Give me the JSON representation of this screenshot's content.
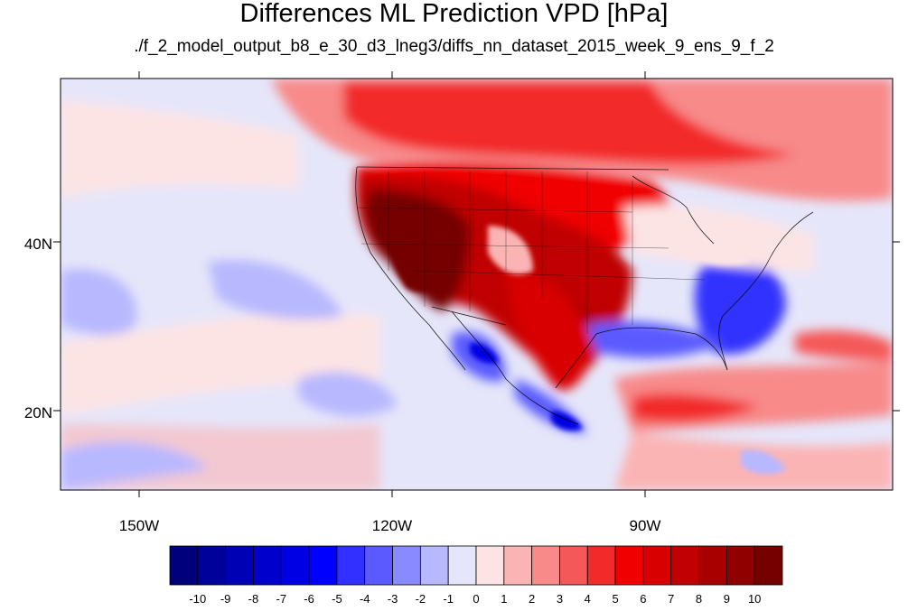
{
  "title": "Differences ML Prediction VPD [hPa]",
  "subtitle": "./f_2_model_output_b8_e_30_d3_lneg3/diffs_nn_dataset_2015_week_9_ens_9_f_2",
  "lat_labels": [
    "40N",
    "20N"
  ],
  "lon_labels": [
    "150W",
    "120W",
    "90W"
  ],
  "colorbar": {
    "tick_labels": [
      "-10",
      "-9",
      "-8",
      "-7",
      "-6",
      "-5",
      "-4",
      "-3",
      "-2",
      "-1",
      "0",
      "1",
      "2",
      "3",
      "4",
      "5",
      "6",
      "7",
      "8",
      "9",
      "10"
    ],
    "colors": [
      "#00007a",
      "#00009a",
      "#0000b4",
      "#0000cc",
      "#0000e4",
      "#0000ff",
      "#3030ff",
      "#5a5aff",
      "#8a8aff",
      "#b8b8ff",
      "#e6e6fa",
      "#fde4e4",
      "#fbb4b4",
      "#f88a8a",
      "#f55858",
      "#f22a2a",
      "#f00000",
      "#d80000",
      "#c00000",
      "#a80000",
      "#900000",
      "#740000"
    ]
  },
  "palette": {
    "neg_light": "#e6e6fa",
    "neg_mid": "#b8b8ff",
    "neg_strong": "#8a8aff",
    "neg_deep": "#3030ff",
    "pos_light": "#fde4e4",
    "pos_mid": "#fbb4b4",
    "pos_strong": "#f55858",
    "pos_red": "#f00000",
    "pos_dark": "#c00000",
    "pos_darkest": "#740000"
  }
}
